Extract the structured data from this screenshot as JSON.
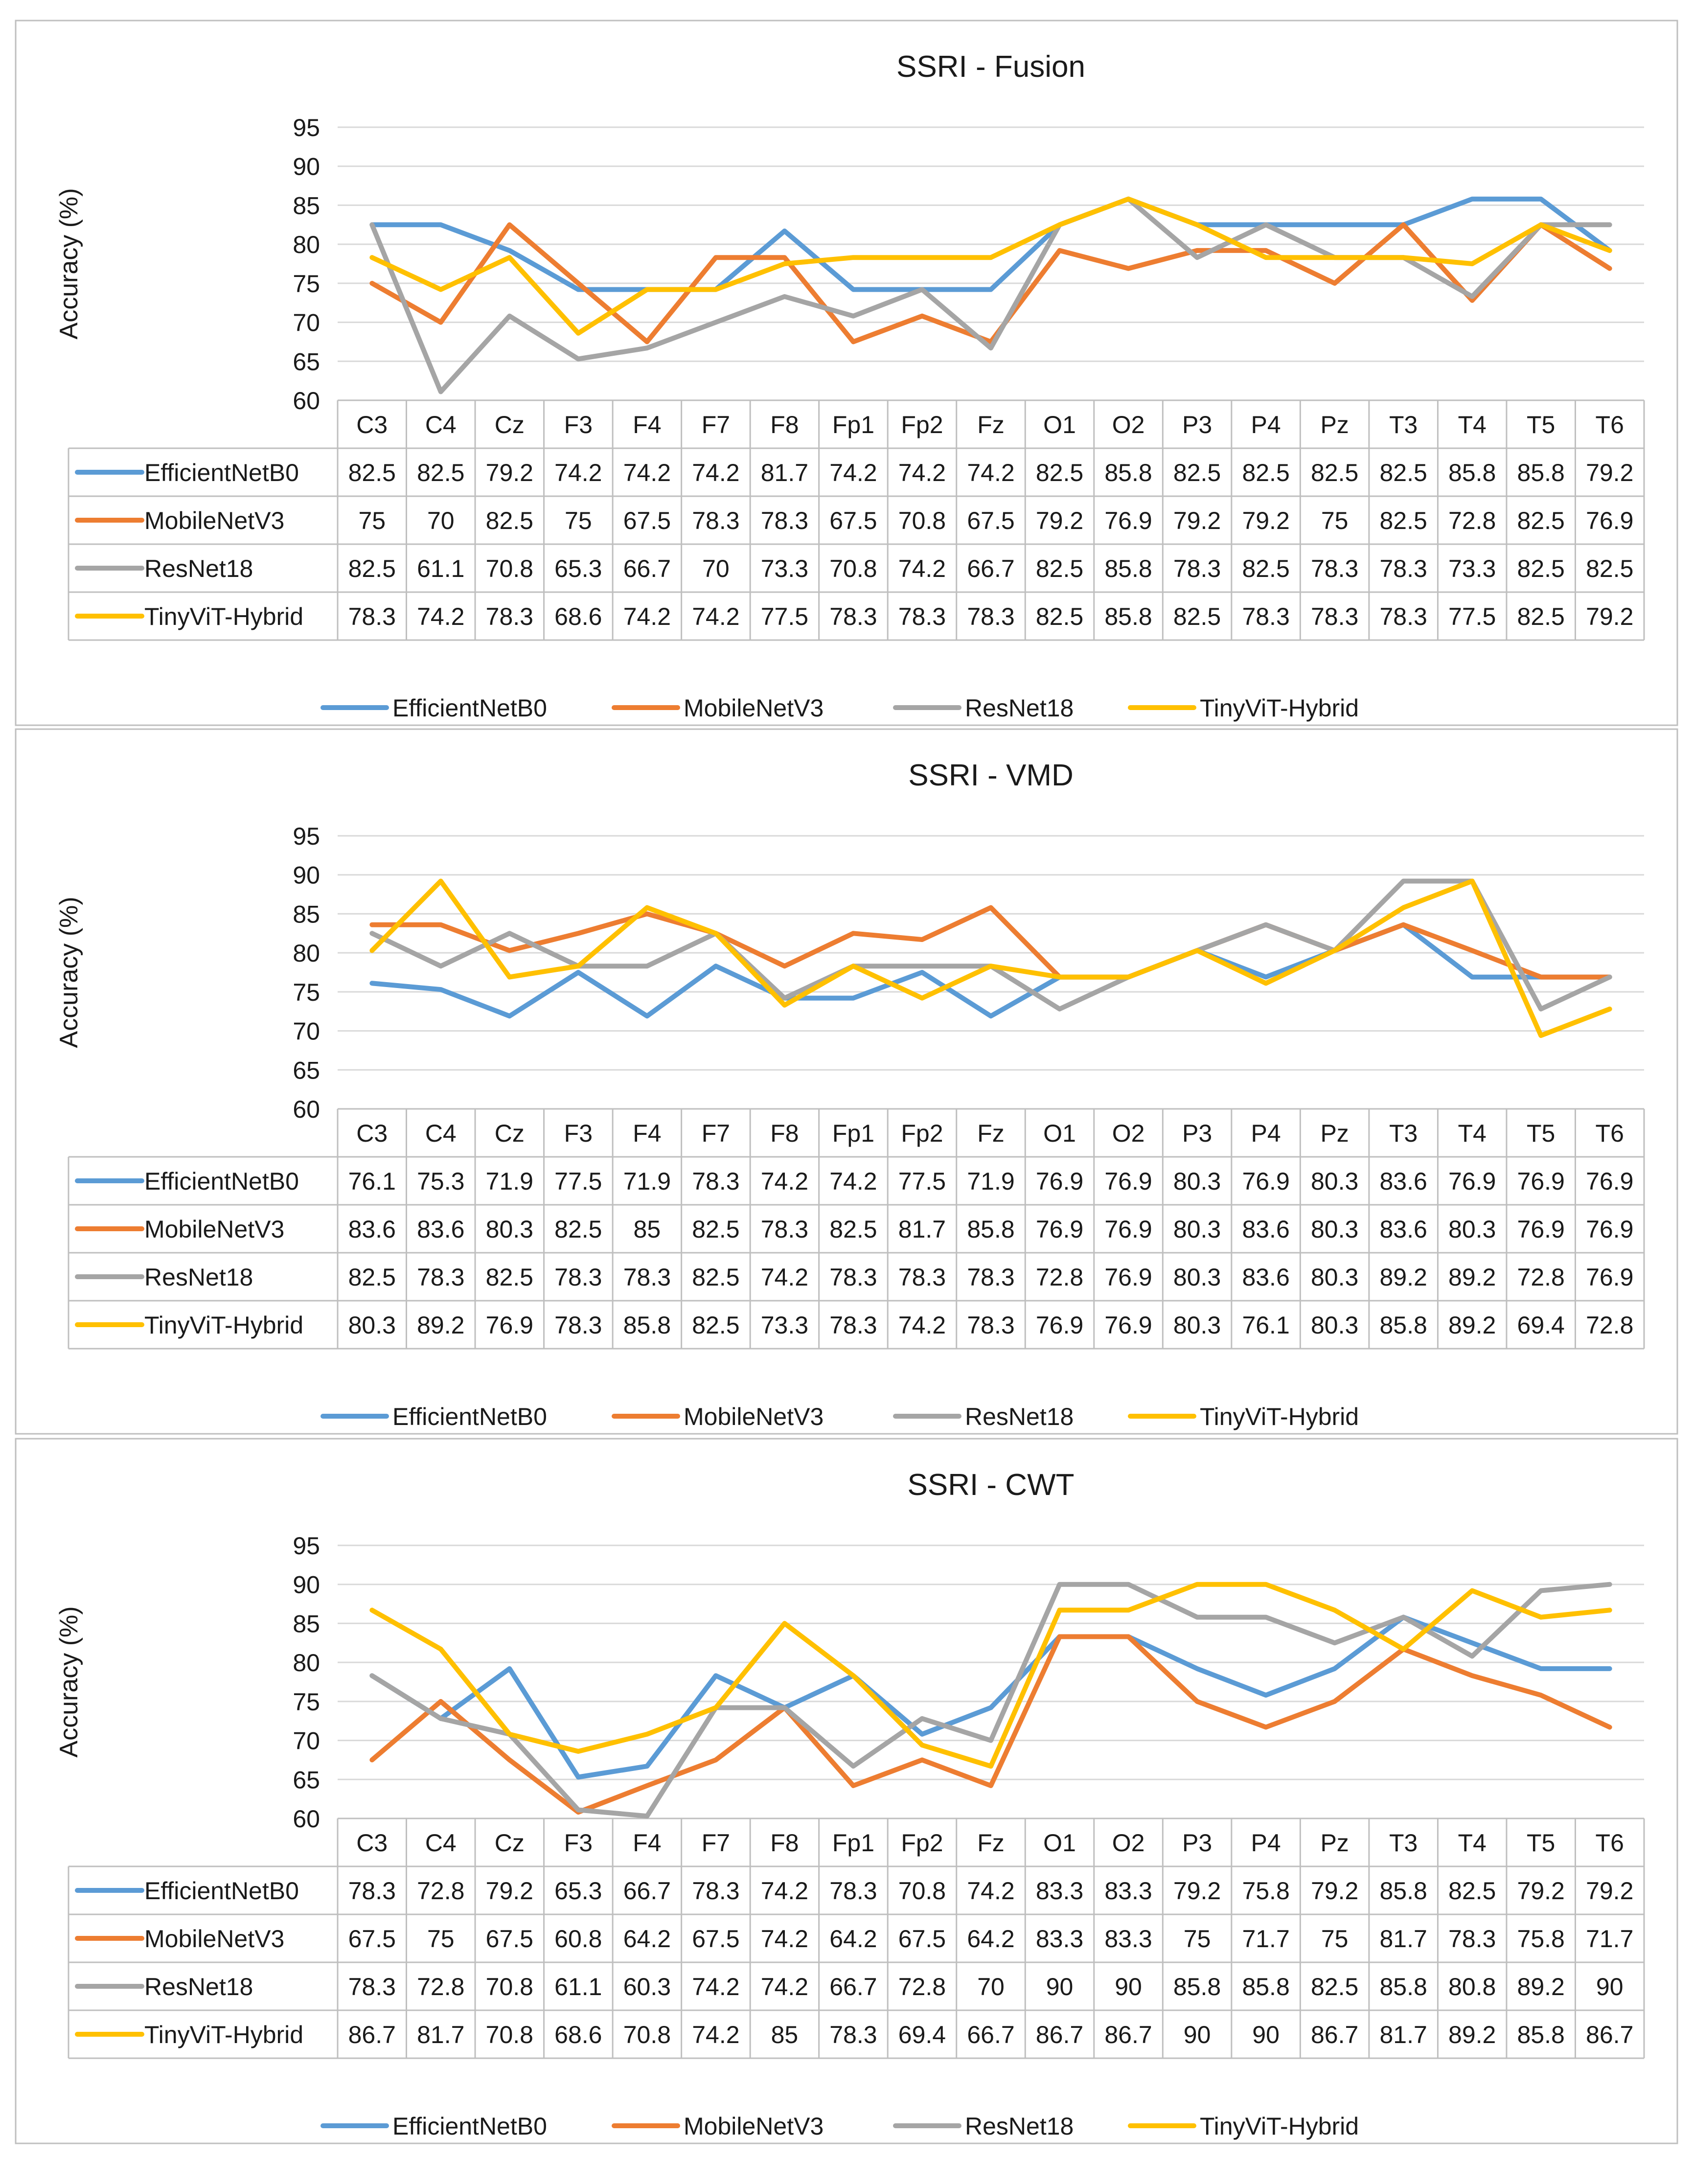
{
  "colors": {
    "EfficientNetB0": "#5B9BD5",
    "MobileNetV3": "#ED7D31",
    "ResNet18": "#A5A5A5",
    "TinyViT-Hybrid": "#FFC000",
    "grid": "#D9D9D9",
    "border": "#BFBFBF"
  },
  "chart_data": [
    {
      "type": "line",
      "title": "SSRI - Fusion",
      "ylabel": "Accuracy (%)",
      "xlabel": "",
      "ylim": [
        60,
        95
      ],
      "yticks": [
        60,
        65,
        70,
        75,
        80,
        85,
        90,
        95
      ],
      "grid": true,
      "legend": "bottom",
      "categories": [
        "C3",
        "C4",
        "Cz",
        "F3",
        "F4",
        "F7",
        "F8",
        "Fp1",
        "Fp2",
        "Fz",
        "O1",
        "O2",
        "P3",
        "P4",
        "Pz",
        "T3",
        "T4",
        "T5",
        "T6"
      ],
      "series": [
        {
          "name": "EfficientNetB0",
          "values": [
            82.5,
            82.5,
            79.2,
            74.2,
            74.2,
            74.2,
            81.7,
            74.2,
            74.2,
            74.2,
            82.5,
            85.8,
            82.5,
            82.5,
            82.5,
            82.5,
            85.8,
            85.8,
            79.2
          ]
        },
        {
          "name": "MobileNetV3",
          "values": [
            75,
            70,
            82.5,
            75,
            67.5,
            78.3,
            78.3,
            67.5,
            70.8,
            67.5,
            79.2,
            76.9,
            79.2,
            79.2,
            75,
            82.5,
            72.8,
            82.5,
            76.9
          ]
        },
        {
          "name": "ResNet18",
          "values": [
            82.5,
            61.1,
            70.8,
            65.3,
            66.7,
            70,
            73.3,
            70.8,
            74.2,
            66.7,
            82.5,
            85.8,
            78.3,
            82.5,
            78.3,
            78.3,
            73.3,
            82.5,
            82.5
          ]
        },
        {
          "name": "TinyViT-Hybrid",
          "values": [
            78.3,
            74.2,
            78.3,
            68.6,
            74.2,
            74.2,
            77.5,
            78.3,
            78.3,
            78.3,
            82.5,
            85.8,
            82.5,
            78.3,
            78.3,
            78.3,
            77.5,
            82.5,
            79.2
          ]
        }
      ]
    },
    {
      "type": "line",
      "title": "SSRI - VMD",
      "ylabel": "Accuracy (%)",
      "xlabel": "",
      "ylim": [
        60,
        95
      ],
      "yticks": [
        60,
        65,
        70,
        75,
        80,
        85,
        90,
        95
      ],
      "grid": true,
      "legend": "bottom",
      "categories": [
        "C3",
        "C4",
        "Cz",
        "F3",
        "F4",
        "F7",
        "F8",
        "Fp1",
        "Fp2",
        "Fz",
        "O1",
        "O2",
        "P3",
        "P4",
        "Pz",
        "T3",
        "T4",
        "T5",
        "T6"
      ],
      "series": [
        {
          "name": "EfficientNetB0",
          "values": [
            76.1,
            75.3,
            71.9,
            77.5,
            71.9,
            78.3,
            74.2,
            74.2,
            77.5,
            71.9,
            76.9,
            76.9,
            80.3,
            76.9,
            80.3,
            83.6,
            76.9,
            76.9,
            76.9
          ]
        },
        {
          "name": "MobileNetV3",
          "values": [
            83.6,
            83.6,
            80.3,
            82.5,
            85,
            82.5,
            78.3,
            82.5,
            81.7,
            85.8,
            76.9,
            76.9,
            80.3,
            83.6,
            80.3,
            83.6,
            80.3,
            76.9,
            76.9
          ]
        },
        {
          "name": "ResNet18",
          "values": [
            82.5,
            78.3,
            82.5,
            78.3,
            78.3,
            82.5,
            74.2,
            78.3,
            78.3,
            78.3,
            72.8,
            76.9,
            80.3,
            83.6,
            80.3,
            89.2,
            89.2,
            72.8,
            76.9
          ]
        },
        {
          "name": "TinyViT-Hybrid",
          "values": [
            80.3,
            89.2,
            76.9,
            78.3,
            85.8,
            82.5,
            73.3,
            78.3,
            74.2,
            78.3,
            76.9,
            76.9,
            80.3,
            76.1,
            80.3,
            85.8,
            89.2,
            69.4,
            72.8
          ]
        }
      ]
    },
    {
      "type": "line",
      "title": "SSRI - CWT",
      "ylabel": "Accuracy (%)",
      "xlabel": "",
      "ylim": [
        60,
        95
      ],
      "yticks": [
        60,
        65,
        70,
        75,
        80,
        85,
        90,
        95
      ],
      "grid": true,
      "legend": "bottom",
      "categories": [
        "C3",
        "C4",
        "Cz",
        "F3",
        "F4",
        "F7",
        "F8",
        "Fp1",
        "Fp2",
        "Fz",
        "O1",
        "O2",
        "P3",
        "P4",
        "Pz",
        "T3",
        "T4",
        "T5",
        "T6"
      ],
      "series": [
        {
          "name": "EfficientNetB0",
          "values": [
            78.3,
            72.8,
            79.2,
            65.3,
            66.7,
            78.3,
            74.2,
            78.3,
            70.8,
            74.2,
            83.3,
            83.3,
            79.2,
            75.8,
            79.2,
            85.8,
            82.5,
            79.2,
            79.2
          ]
        },
        {
          "name": "MobileNetV3",
          "values": [
            67.5,
            75,
            67.5,
            60.8,
            64.2,
            67.5,
            74.2,
            64.2,
            67.5,
            64.2,
            83.3,
            83.3,
            75,
            71.7,
            75,
            81.7,
            78.3,
            75.8,
            71.7
          ]
        },
        {
          "name": "ResNet18",
          "values": [
            78.3,
            72.8,
            70.8,
            61.1,
            60.3,
            74.2,
            74.2,
            66.7,
            72.8,
            70,
            90,
            90,
            85.8,
            85.8,
            82.5,
            85.8,
            80.8,
            89.2,
            90
          ]
        },
        {
          "name": "TinyViT-Hybrid",
          "values": [
            86.7,
            81.7,
            70.8,
            68.6,
            70.8,
            74.2,
            85,
            78.3,
            69.4,
            66.7,
            86.7,
            86.7,
            90,
            90,
            86.7,
            81.7,
            89.2,
            85.8,
            86.7
          ]
        }
      ]
    }
  ]
}
